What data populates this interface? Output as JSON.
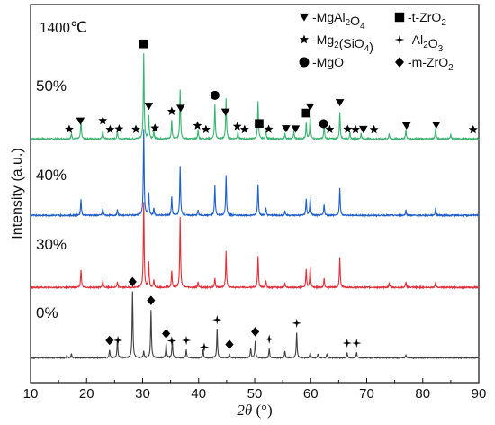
{
  "chart_data": {
    "type": "line",
    "temperature_label": "1400℃",
    "xlabel": "2θ (°)",
    "ylabel": "Intensity (a.u.)",
    "xlim": [
      10,
      90
    ],
    "xticks": [
      10,
      20,
      30,
      40,
      50,
      60,
      70,
      80,
      90
    ],
    "legend": [
      {
        "marker": "triangle-down",
        "label": "-MgAl₂O₄"
      },
      {
        "marker": "square",
        "label": "-t-ZrO₂"
      },
      {
        "marker": "star",
        "label": "-Mg₂(SiO₄)"
      },
      {
        "marker": "sparkle",
        "label": "-Al₂O₃"
      },
      {
        "marker": "circle",
        "label": "-MgO"
      },
      {
        "marker": "diamond",
        "label": "-m-ZrO₂"
      }
    ],
    "series": [
      {
        "label": "50%",
        "color": "#3cb371",
        "peaks": [
          [
            17.3,
            6
          ],
          [
            19.0,
            22
          ],
          [
            22.9,
            10
          ],
          [
            25.5,
            8
          ],
          [
            30.2,
            95
          ],
          [
            31.1,
            25
          ],
          [
            32.0,
            8
          ],
          [
            35.2,
            20
          ],
          [
            36.7,
            55
          ],
          [
            39.9,
            10
          ],
          [
            42.9,
            38
          ],
          [
            44.9,
            45
          ],
          [
            47.0,
            8
          ],
          [
            50.6,
            42
          ],
          [
            52.0,
            10
          ],
          [
            55.4,
            6
          ],
          [
            57.0,
            8
          ],
          [
            59.2,
            18
          ],
          [
            59.9,
            25
          ],
          [
            62.4,
            15
          ],
          [
            65.2,
            30
          ],
          [
            67.0,
            6
          ],
          [
            69.0,
            6
          ],
          [
            74.0,
            6
          ],
          [
            77.0,
            10
          ],
          [
            82.3,
            12
          ],
          [
            85.0,
            5
          ]
        ],
        "markers": [
          {
            "x": 18.9,
            "type": "triangle-down"
          },
          {
            "x": 16.9,
            "type": "star"
          },
          {
            "x": 22.9,
            "type": "star"
          },
          {
            "x": 24.2,
            "type": "star"
          },
          {
            "x": 25.8,
            "type": "star"
          },
          {
            "x": 28.8,
            "type": "star"
          },
          {
            "x": 30.2,
            "type": "square"
          },
          {
            "x": 31.1,
            "type": "triangle-down"
          },
          {
            "x": 32.2,
            "type": "star"
          },
          {
            "x": 35.2,
            "type": "star"
          },
          {
            "x": 36.8,
            "type": "triangle-down"
          },
          {
            "x": 39.8,
            "type": "star"
          },
          {
            "x": 41.3,
            "type": "star"
          },
          {
            "x": 42.9,
            "type": "circle"
          },
          {
            "x": 44.8,
            "type": "triangle-down"
          },
          {
            "x": 46.9,
            "type": "star"
          },
          {
            "x": 48.2,
            "type": "star"
          },
          {
            "x": 50.8,
            "type": "square"
          },
          {
            "x": 52.5,
            "type": "star"
          },
          {
            "x": 55.6,
            "type": "triangle-down"
          },
          {
            "x": 57.3,
            "type": "triangle-down"
          },
          {
            "x": 59.2,
            "type": "square"
          },
          {
            "x": 59.9,
            "type": "triangle-down"
          },
          {
            "x": 62.3,
            "type": "circle"
          },
          {
            "x": 63.4,
            "type": "star"
          },
          {
            "x": 65.2,
            "type": "triangle-down"
          },
          {
            "x": 66.6,
            "type": "star"
          },
          {
            "x": 68.0,
            "type": "star"
          },
          {
            "x": 69.4,
            "type": "triangle-down"
          },
          {
            "x": 71.3,
            "type": "star"
          },
          {
            "x": 77.1,
            "type": "triangle-down"
          },
          {
            "x": 82.4,
            "type": "triangle-down"
          },
          {
            "x": 89.0,
            "type": "star"
          }
        ]
      },
      {
        "label": "40%",
        "color": "#1f5fc9",
        "peaks": [
          [
            19.0,
            18
          ],
          [
            22.9,
            8
          ],
          [
            25.5,
            6
          ],
          [
            30.2,
            95
          ],
          [
            31.1,
            25
          ],
          [
            32.0,
            8
          ],
          [
            35.2,
            20
          ],
          [
            36.7,
            55
          ],
          [
            39.9,
            6
          ],
          [
            42.9,
            33
          ],
          [
            44.9,
            45
          ],
          [
            50.6,
            35
          ],
          [
            52.0,
            8
          ],
          [
            55.4,
            5
          ],
          [
            59.2,
            18
          ],
          [
            59.9,
            20
          ],
          [
            62.4,
            12
          ],
          [
            65.2,
            30
          ],
          [
            77.0,
            6
          ],
          [
            82.3,
            8
          ]
        ],
        "markers": []
      },
      {
        "label": "30%",
        "color": "#e0303a",
        "peaks": [
          [
            19.0,
            20
          ],
          [
            22.9,
            8
          ],
          [
            25.5,
            6
          ],
          [
            30.2,
            95
          ],
          [
            31.1,
            28
          ],
          [
            32.0,
            8
          ],
          [
            35.2,
            18
          ],
          [
            36.7,
            78
          ],
          [
            39.9,
            6
          ],
          [
            42.9,
            10
          ],
          [
            44.9,
            40
          ],
          [
            50.6,
            35
          ],
          [
            52.0,
            8
          ],
          [
            55.4,
            5
          ],
          [
            59.2,
            20
          ],
          [
            59.9,
            23
          ],
          [
            62.4,
            10
          ],
          [
            65.2,
            33
          ],
          [
            74.0,
            5
          ],
          [
            77.0,
            6
          ],
          [
            82.3,
            6
          ]
        ],
        "markers": []
      },
      {
        "label": "0%",
        "color": "#404040",
        "peaks": [
          [
            16.5,
            4
          ],
          [
            17.3,
            6
          ],
          [
            24.1,
            12
          ],
          [
            25.5,
            28
          ],
          [
            28.2,
            100
          ],
          [
            30.2,
            10
          ],
          [
            31.5,
            72
          ],
          [
            34.2,
            22
          ],
          [
            35.3,
            26
          ],
          [
            37.8,
            12
          ],
          [
            40.8,
            12
          ],
          [
            43.3,
            43
          ],
          [
            45.5,
            6
          ],
          [
            49.3,
            14
          ],
          [
            50.1,
            25
          ],
          [
            52.6,
            14
          ],
          [
            55.4,
            10
          ],
          [
            57.5,
            38
          ],
          [
            59.9,
            8
          ],
          [
            61.3,
            6
          ],
          [
            62.9,
            6
          ],
          [
            66.5,
            8
          ],
          [
            68.2,
            8
          ],
          [
            77.0,
            4
          ]
        ],
        "markers": [
          {
            "x": 24.1,
            "type": "diamond"
          },
          {
            "x": 25.6,
            "type": "sparkle"
          },
          {
            "x": 28.2,
            "type": "diamond"
          },
          {
            "x": 31.5,
            "type": "diamond"
          },
          {
            "x": 34.2,
            "type": "diamond"
          },
          {
            "x": 35.2,
            "type": "sparkle"
          },
          {
            "x": 37.8,
            "type": "sparkle"
          },
          {
            "x": 41.0,
            "type": "sparkle"
          },
          {
            "x": 43.3,
            "type": "sparkle"
          },
          {
            "x": 45.5,
            "type": "diamond"
          },
          {
            "x": 50.1,
            "type": "diamond"
          },
          {
            "x": 52.6,
            "type": "sparkle"
          },
          {
            "x": 57.5,
            "type": "sparkle"
          },
          {
            "x": 66.5,
            "type": "sparkle"
          },
          {
            "x": 68.2,
            "type": "sparkle"
          }
        ]
      }
    ]
  }
}
